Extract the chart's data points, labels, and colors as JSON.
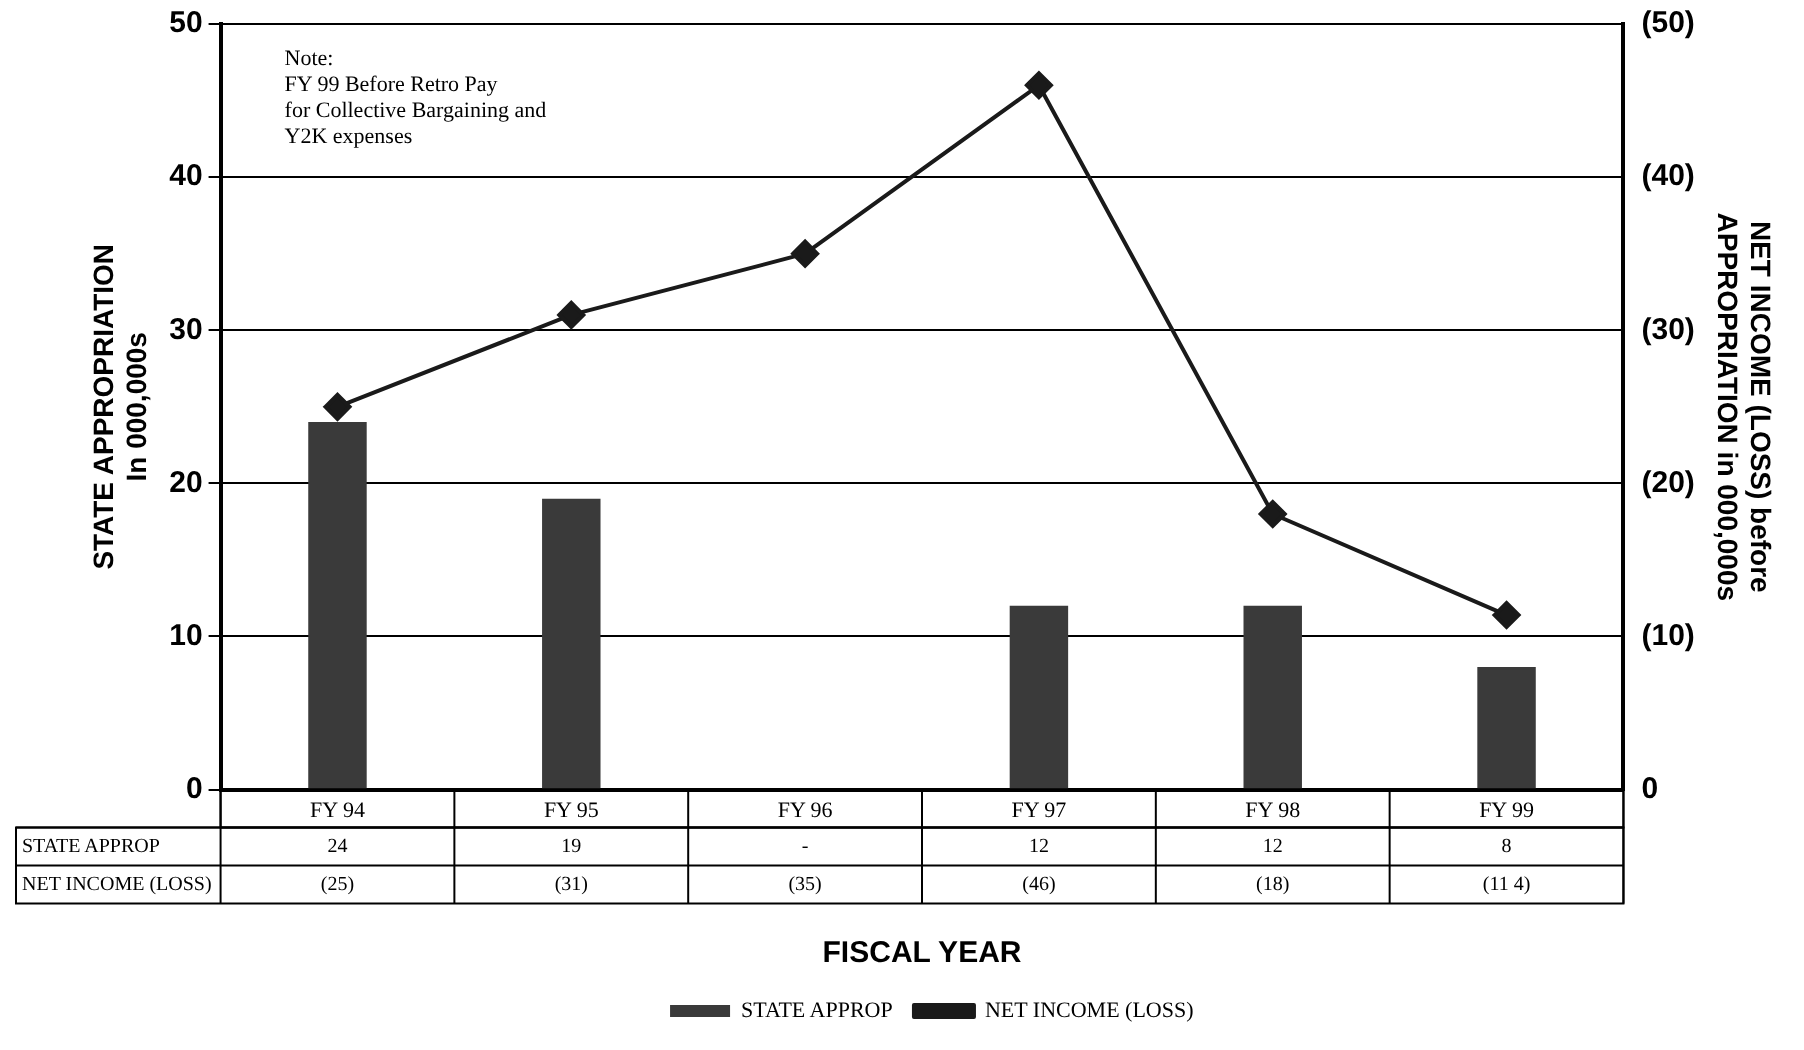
{
  "chart_data": {
    "type": "bar",
    "xlabel": "FISCAL YEAR",
    "ylabel": "STATE APPROPRIATION\nIn 000,000s",
    "y2label": "NET INCOME (LOSS) before\nAPPROPRIATION in 000,000s",
    "categories": [
      "FY 94",
      "FY 95",
      "FY 96",
      "FY 97",
      "FY 98",
      "FY 99"
    ],
    "series": [
      {
        "name": "STATE APPROP",
        "color": "#3a3a3a",
        "values": [
          24,
          19,
          null,
          12,
          12,
          8
        ],
        "value_labels": [
          "24",
          "19",
          "-",
          "12",
          "12",
          "8"
        ]
      },
      {
        "name": "NET INCOME (LOSS)",
        "type": "line",
        "axis": "y2",
        "color": "#1a1a1a",
        "values": [
          -25,
          -31,
          -35,
          -46,
          -18,
          -11.4
        ],
        "value_labels": [
          "(25)",
          "(31)",
          "(35)",
          "(46)",
          "(18)",
          "(11 4)"
        ]
      }
    ],
    "ylim": [
      0,
      50
    ],
    "yticks": [
      0,
      10,
      20,
      30,
      40,
      50
    ],
    "y2lim": [
      0,
      -50
    ],
    "y2ticks": [
      {
        "value": 0,
        "label": "0"
      },
      {
        "value": -10,
        "label": "(10)"
      },
      {
        "value": -20,
        "label": "(20)"
      },
      {
        "value": -30,
        "label": "(30)"
      },
      {
        "value": -40,
        "label": "(40)"
      },
      {
        "value": -50,
        "label": "(50)"
      }
    ],
    "grid": "y",
    "legend": "bottom",
    "marker": "diamond",
    "line_style": "solid",
    "annotations": [
      "Note:\nFY 99 Before Retro Pay\nfor Collective Bargaining and\nY2K expenses"
    ]
  }
}
